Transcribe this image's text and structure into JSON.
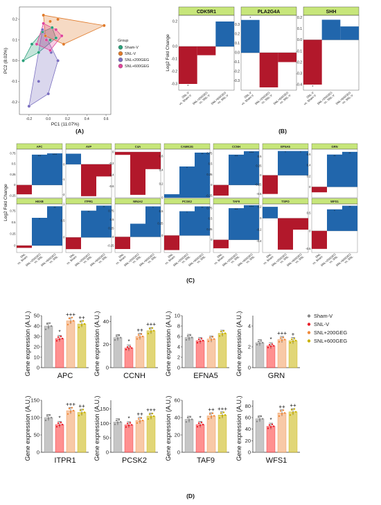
{
  "figure": {
    "panel_labels": [
      "(A)",
      "(B)",
      "(C)",
      "(D)"
    ]
  },
  "colors": {
    "sham": "#2aa07a",
    "snl": "#e07a2a",
    "g200": "#7a6fc0",
    "g600": "#e0449a",
    "up": "#2166ac",
    "down": "#b2182b",
    "title_bg": "#c7e67a",
    "d_sham": "#b3b3b3",
    "d_snl": "#ff6b6b",
    "d_200": "#f5b78a",
    "d_600": "#d7c84a",
    "d_sham_pt": "#888888",
    "d_snl_pt": "#e8202a",
    "d_200_pt": "#f08a3c",
    "d_600_pt": "#c9b200"
  },
  "chart_data": [
    {
      "type": "scatter",
      "panel": "(A)",
      "xlabel": "PC1 (11.07%)",
      "ylabel": "PC2 (8.02%)",
      "xticks": [
        "-0.2",
        "0.0",
        "0.2",
        "0.4",
        "0.6"
      ],
      "yticks": [
        "0.2",
        "0.1",
        "0.0",
        "-0.1",
        "-0.2"
      ],
      "xlim": [
        -0.3,
        0.65
      ],
      "ylim": [
        -0.26,
        0.26
      ],
      "legend_title": "Group",
      "legend_position": "right",
      "series": [
        {
          "name": "Sham-V",
          "color_key": "sham",
          "x": [
            -0.26,
            -0.17,
            -0.06,
            0.02,
            0.04,
            -0.1,
            0.08
          ],
          "y": [
            0.0,
            0.08,
            0.14,
            0.1,
            0.16,
            0.04,
            0.11
          ]
        },
        {
          "name": "SNL-V",
          "color_key": "snl",
          "x": [
            -0.05,
            0.02,
            0.1,
            0.58,
            0.16,
            -0.03
          ],
          "y": [
            0.22,
            0.19,
            0.2,
            0.17,
            0.08,
            0.12
          ]
        },
        {
          "name": "SNL+200GEG",
          "color_key": "g200",
          "x": [
            -0.2,
            -0.1,
            0.0,
            0.1,
            0.03,
            -0.06
          ],
          "y": [
            -0.22,
            -0.1,
            -0.16,
            0.0,
            0.04,
            0.15
          ]
        },
        {
          "name": "SNL+600GEG",
          "color_key": "g600",
          "x": [
            -0.12,
            -0.05,
            0.02,
            0.08,
            0.14,
            -0.02
          ],
          "y": [
            0.08,
            0.18,
            0.05,
            0.15,
            0.12,
            0.1
          ]
        }
      ]
    },
    {
      "type": "bar",
      "panel": "(B)",
      "ylabel": "Log2 Fold Change",
      "categories": [
        "SNL-V\nvs. Sham-V",
        "SNL+200GEG\nvs. SNL-V",
        "SNL+600GEG\nvs. SNL-V"
      ],
      "panels": [
        {
          "gene": "CDK5R1",
          "values": [
            -0.3,
            -0.07,
            0.2
          ],
          "ylim": [
            -0.35,
            0.25
          ],
          "yticks": [
            0.2,
            0.0,
            -0.1,
            -0.2,
            -0.3
          ],
          "star": [
            true,
            false,
            false
          ]
        },
        {
          "gene": "PLA2G4A",
          "values": [
            0.35,
            -0.37,
            -0.1
          ],
          "ylim": [
            -0.4,
            0.4
          ],
          "yticks": [
            0.3,
            0.2,
            0.1,
            0.0,
            -0.1,
            -0.2,
            -0.3
          ],
          "star": [
            true,
            false,
            false
          ]
        },
        {
          "gene": "SHH",
          "values": [
            -0.4,
            0.18,
            0.12
          ],
          "ylim": [
            -0.45,
            0.22
          ],
          "yticks": [
            0.2,
            0.1,
            0.0,
            -0.1,
            -0.2,
            -0.3,
            -0.4
          ],
          "star": [
            true,
            false,
            false
          ]
        }
      ]
    },
    {
      "type": "bar",
      "panel": "(C)",
      "ylabel": "Log2 Fold Change",
      "categories": [
        "SNL\nvs. Sham",
        "SNL+200GEG\nvs. SNL",
        "SNL+600GEG\nvs. SNL"
      ],
      "panels": [
        {
          "gene": "APC",
          "values": [
            -0.22,
            0.72,
            0.75
          ],
          "ylim": [
            -0.3,
            0.85
          ],
          "yticks": [
            0.75,
            0.5,
            0.25,
            0.0,
            -0.25
          ],
          "stars": [
            "",
            "***",
            "****"
          ]
        },
        {
          "gene": "AVP",
          "values": [
            0.7,
            -2.1,
            -0.8
          ],
          "ylim": [
            -2.2,
            1.0
          ],
          "yticks": [
            0,
            -1,
            -2
          ],
          "stars": [
            "",
            "",
            ""
          ]
        },
        {
          "gene": "C4A",
          "values": [
            -0.05,
            -0.75,
            -0.3
          ],
          "ylim": [
            -0.8,
            0.05
          ],
          "yticks": [
            0.0,
            -0.2,
            -0.4,
            -0.6
          ],
          "stars": [
            "",
            "",
            ""
          ]
        },
        {
          "gene": "CAMK2G",
          "values": [
            0.05,
            0.45,
            0.65
          ],
          "ylim": [
            0,
            0.7
          ],
          "yticks": [
            0.6,
            0.4,
            0.2,
            0.0
          ],
          "stars": [
            "",
            "*",
            "**"
          ]
        },
        {
          "gene": "CCNH",
          "values": [
            -0.25,
            0.72,
            0.8
          ],
          "ylim": [
            -0.3,
            0.85
          ],
          "yticks": [
            0.75,
            0.5,
            0.25,
            0.0,
            -0.25
          ],
          "stars": [
            "",
            "***",
            "****"
          ]
        },
        {
          "gene": "EFNA5",
          "values": [
            -0.5,
            0.65,
            0.65
          ],
          "ylim": [
            -0.6,
            0.7
          ],
          "yticks": [
            0.5,
            0.25,
            0.0,
            -0.25,
            -0.5
          ],
          "stars": [
            "",
            "*",
            "*"
          ]
        },
        {
          "gene": "GRN",
          "values": [
            -0.1,
            0.6,
            0.65
          ],
          "ylim": [
            -0.2,
            0.7
          ],
          "yticks": [
            0.6,
            0.4,
            0.2,
            0.0
          ],
          "stars": [
            "",
            "**",
            "**"
          ]
        },
        {
          "gene": "HEXB",
          "values": [
            -0.05,
            0.6,
            0.85
          ],
          "ylim": [
            -0.15,
            0.9
          ],
          "yticks": [
            0.75,
            0.5,
            0.25,
            0.0
          ],
          "stars": [
            "",
            "*",
            "**"
          ]
        },
        {
          "gene": "ITPR1",
          "values": [
            -0.35,
            0.8,
            0.95
          ],
          "ylim": [
            -0.45,
            1.0
          ],
          "yticks": [
            1.0,
            0.5,
            0.0
          ],
          "stars": [
            "",
            "**",
            "**"
          ]
        },
        {
          "gene": "NR4A2",
          "values": [
            -0.35,
            0.38,
            0.88
          ],
          "ylim": [
            -0.45,
            0.95
          ],
          "yticks": [
            0.75,
            0.5,
            0.25,
            0.0,
            -0.25
          ],
          "stars": [
            "",
            "",
            "*"
          ]
        },
        {
          "gene": "PCSK2",
          "values": [
            -0.3,
            0.5,
            0.6
          ],
          "ylim": [
            -0.35,
            0.65
          ],
          "yticks": [
            0.5,
            0.25,
            0.0
          ],
          "stars": [
            "",
            "*",
            "**"
          ]
        },
        {
          "gene": "TAF9",
          "values": [
            -0.2,
            0.75,
            0.82
          ],
          "ylim": [
            -0.3,
            0.85
          ],
          "yticks": [
            0.75,
            0.5,
            0.25,
            0.0
          ],
          "stars": [
            "",
            "***",
            "****"
          ]
        },
        {
          "gene": "TSPO",
          "values": [
            0.2,
            -0.55,
            -0.2
          ],
          "ylim": [
            -0.6,
            0.25
          ],
          "yticks": [
            0.2,
            0.0,
            -0.2,
            -0.4
          ],
          "stars": [
            "",
            "",
            ""
          ]
        },
        {
          "gene": "WFS1",
          "values": [
            -0.5,
            0.6,
            0.7
          ],
          "ylim": [
            -0.6,
            0.75
          ],
          "yticks": [
            0.5,
            0.0,
            -0.5
          ],
          "stars": [
            "",
            "*",
            "**"
          ]
        }
      ]
    },
    {
      "type": "bar",
      "panel": "(D)",
      "ylabel": "Gene expression (A.U.)",
      "legend": [
        "Sham-V",
        "SNL-V",
        "SNL+200GEG",
        "SNL+600GEG"
      ],
      "legend_position": "top-right",
      "panels": [
        {
          "gene": "APC",
          "means": [
            40,
            28,
            45,
            42
          ],
          "ylim": [
            0,
            50
          ],
          "yticks": [
            0,
            10,
            20,
            30,
            40,
            50
          ],
          "marks": [
            "",
            "*",
            "+++",
            "++"
          ]
        },
        {
          "gene": "CCNH",
          "means": [
            26,
            17,
            27,
            32
          ],
          "ylim": [
            0,
            45
          ],
          "yticks": [
            0,
            20,
            40
          ],
          "marks": [
            "",
            "*",
            "++",
            "+++"
          ]
        },
        {
          "gene": "EFNA5",
          "means": [
            5.8,
            5.2,
            5.5,
            6.6
          ],
          "ylim": [
            0,
            10
          ],
          "yticks": [
            0,
            2,
            4,
            6,
            8,
            10
          ],
          "marks": [
            "",
            "",
            "",
            ""
          ]
        },
        {
          "gene": "GRN",
          "means": [
            2.4,
            2.1,
            2.7,
            2.6
          ],
          "ylim": [
            0,
            5
          ],
          "yticks": [
            0,
            2,
            4
          ],
          "marks": [
            "",
            "*",
            "+++",
            "+"
          ]
        },
        {
          "gene": "ITPR1",
          "means": [
            100,
            80,
            120,
            115
          ],
          "ylim": [
            0,
            150
          ],
          "yticks": [
            0,
            50,
            100,
            150
          ],
          "marks": [
            "",
            "*",
            "+++",
            "++"
          ]
        },
        {
          "gene": "PCSK2",
          "means": [
            105,
            95,
            110,
            125
          ],
          "ylim": [
            0,
            180
          ],
          "yticks": [
            0,
            50,
            100,
            150
          ],
          "marks": [
            "",
            "*",
            "++",
            "+++"
          ]
        },
        {
          "gene": "TAF9",
          "means": [
            38,
            32,
            42,
            43
          ],
          "ylim": [
            0,
            60
          ],
          "yticks": [
            0,
            20,
            40,
            60
          ],
          "marks": [
            "",
            "*",
            "++",
            "+++"
          ]
        },
        {
          "gene": "WFS1",
          "means": [
            58,
            45,
            68,
            70
          ],
          "ylim": [
            0,
            90
          ],
          "yticks": [
            0,
            20,
            40,
            60,
            80
          ],
          "marks": [
            "",
            "*",
            "++",
            "++"
          ]
        }
      ]
    }
  ]
}
